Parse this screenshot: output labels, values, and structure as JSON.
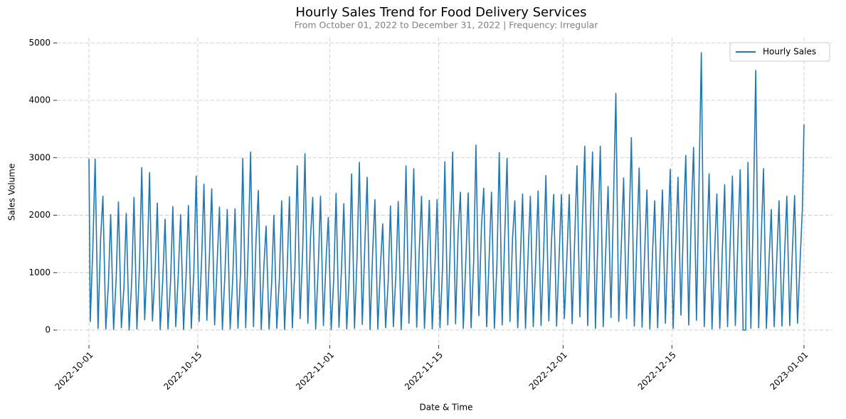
{
  "chart_data": {
    "type": "line",
    "title": "Hourly Sales Trend for Food Delivery Services",
    "subtitle": "From October 01, 2022 to December 31, 2022 | Frequency: Irregular",
    "x_label": "Date & Time",
    "y_label": "Sales Volume",
    "x": [
      "2022-10-01 00:00",
      "2022-10-01 04:00",
      "2022-10-01 12:00",
      "2022-10-01 19:00",
      "2022-10-02 04:00",
      "2022-10-02 12:00",
      "2022-10-02 19:00",
      "2022-10-03 04:00",
      "2022-10-03 12:00",
      "2022-10-03 19:00",
      "2022-10-04 04:00",
      "2022-10-04 12:00",
      "2022-10-04 19:00",
      "2022-10-05 04:00",
      "2022-10-05 12:00",
      "2022-10-05 19:00",
      "2022-10-06 04:00",
      "2022-10-06 12:00",
      "2022-10-06 19:00",
      "2022-10-07 04:00",
      "2022-10-07 12:00",
      "2022-10-07 19:00",
      "2022-10-08 04:00",
      "2022-10-08 12:00",
      "2022-10-08 19:00",
      "2022-10-09 04:00",
      "2022-10-09 12:00",
      "2022-10-09 19:00",
      "2022-10-10 04:00",
      "2022-10-10 12:00",
      "2022-10-10 19:00",
      "2022-10-11 04:00",
      "2022-10-11 12:00",
      "2022-10-11 19:00",
      "2022-10-12 04:00",
      "2022-10-12 12:00",
      "2022-10-12 19:00",
      "2022-10-13 04:00",
      "2022-10-13 12:00",
      "2022-10-13 19:00",
      "2022-10-14 04:00",
      "2022-10-14 12:00",
      "2022-10-14 19:00",
      "2022-10-15 04:00",
      "2022-10-15 12:00",
      "2022-10-15 19:00",
      "2022-10-16 04:00",
      "2022-10-16 12:00",
      "2022-10-16 19:00",
      "2022-10-17 04:00",
      "2022-10-17 12:00",
      "2022-10-17 19:00",
      "2022-10-18 04:00",
      "2022-10-18 12:00",
      "2022-10-18 19:00",
      "2022-10-19 04:00",
      "2022-10-19 12:00",
      "2022-10-19 19:00",
      "2022-10-20 04:00",
      "2022-10-20 12:00",
      "2022-10-20 19:00",
      "2022-10-21 04:00",
      "2022-10-21 12:00",
      "2022-10-21 19:00",
      "2022-10-22 04:00",
      "2022-10-22 12:00",
      "2022-10-22 19:00",
      "2022-10-23 04:00",
      "2022-10-23 12:00",
      "2022-10-23 19:00",
      "2022-10-24 04:00",
      "2022-10-24 12:00",
      "2022-10-24 19:00",
      "2022-10-25 04:00",
      "2022-10-25 12:00",
      "2022-10-25 19:00",
      "2022-10-26 04:00",
      "2022-10-26 12:00",
      "2022-10-26 19:00",
      "2022-10-27 04:00",
      "2022-10-27 12:00",
      "2022-10-27 19:00",
      "2022-10-28 04:00",
      "2022-10-28 12:00",
      "2022-10-28 19:00",
      "2022-10-29 04:00",
      "2022-10-29 12:00",
      "2022-10-29 19:00",
      "2022-10-30 04:00",
      "2022-10-30 12:00",
      "2022-10-30 19:00",
      "2022-10-31 04:00",
      "2022-10-31 12:00",
      "2022-10-31 19:00",
      "2022-11-01 04:00",
      "2022-11-01 12:00",
      "2022-11-01 19:00",
      "2022-11-02 04:00",
      "2022-11-02 12:00",
      "2022-11-02 19:00",
      "2022-11-03 04:00",
      "2022-11-03 12:00",
      "2022-11-03 19:00",
      "2022-11-04 04:00",
      "2022-11-04 12:00",
      "2022-11-04 19:00",
      "2022-11-05 04:00",
      "2022-11-05 12:00",
      "2022-11-05 19:00",
      "2022-11-06 04:00",
      "2022-11-06 12:00",
      "2022-11-06 19:00",
      "2022-11-07 04:00",
      "2022-11-07 12:00",
      "2022-11-07 19:00",
      "2022-11-08 04:00",
      "2022-11-08 12:00",
      "2022-11-08 19:00",
      "2022-11-09 04:00",
      "2022-11-09 12:00",
      "2022-11-09 19:00",
      "2022-11-10 04:00",
      "2022-11-10 12:00",
      "2022-11-10 19:00",
      "2022-11-11 04:00",
      "2022-11-11 12:00",
      "2022-11-11 19:00",
      "2022-11-12 04:00",
      "2022-11-12 12:00",
      "2022-11-12 19:00",
      "2022-11-13 04:00",
      "2022-11-13 12:00",
      "2022-11-13 19:00",
      "2022-11-14 04:00",
      "2022-11-14 12:00",
      "2022-11-14 19:00",
      "2022-11-15 04:00",
      "2022-11-15 12:00",
      "2022-11-15 19:00",
      "2022-11-16 04:00",
      "2022-11-16 12:00",
      "2022-11-16 19:00",
      "2022-11-17 04:00",
      "2022-11-17 12:00",
      "2022-11-17 19:00",
      "2022-11-18 04:00",
      "2022-11-18 12:00",
      "2022-11-18 19:00",
      "2022-11-19 04:00",
      "2022-11-19 12:00",
      "2022-11-19 19:00",
      "2022-11-20 04:00",
      "2022-11-20 12:00",
      "2022-11-20 19:00",
      "2022-11-21 04:00",
      "2022-11-21 12:00",
      "2022-11-21 19:00",
      "2022-11-22 04:00",
      "2022-11-22 12:00",
      "2022-11-22 19:00",
      "2022-11-23 04:00",
      "2022-11-23 12:00",
      "2022-11-23 19:00",
      "2022-11-24 04:00",
      "2022-11-24 12:00",
      "2022-11-24 19:00",
      "2022-11-25 04:00",
      "2022-11-25 12:00",
      "2022-11-25 19:00",
      "2022-11-26 04:00",
      "2022-11-26 12:00",
      "2022-11-26 19:00",
      "2022-11-27 04:00",
      "2022-11-27 12:00",
      "2022-11-27 19:00",
      "2022-11-28 04:00",
      "2022-11-28 12:00",
      "2022-11-28 19:00",
      "2022-11-29 04:00",
      "2022-11-29 12:00",
      "2022-11-29 19:00",
      "2022-11-30 04:00",
      "2022-11-30 12:00",
      "2022-11-30 19:00",
      "2022-12-01 04:00",
      "2022-12-01 12:00",
      "2022-12-01 19:00",
      "2022-12-02 04:00",
      "2022-12-02 12:00",
      "2022-12-02 19:00",
      "2022-12-03 04:00",
      "2022-12-03 12:00",
      "2022-12-03 19:00",
      "2022-12-04 04:00",
      "2022-12-04 12:00",
      "2022-12-04 19:00",
      "2022-12-05 04:00",
      "2022-12-05 12:00",
      "2022-12-05 19:00",
      "2022-12-06 04:00",
      "2022-12-06 12:00",
      "2022-12-06 19:00",
      "2022-12-07 04:00",
      "2022-12-07 12:00",
      "2022-12-07 19:00",
      "2022-12-08 04:00",
      "2022-12-08 12:00",
      "2022-12-08 19:00",
      "2022-12-09 04:00",
      "2022-12-09 12:00",
      "2022-12-09 19:00",
      "2022-12-10 04:00",
      "2022-12-10 12:00",
      "2022-12-10 19:00",
      "2022-12-11 04:00",
      "2022-12-11 12:00",
      "2022-12-11 19:00",
      "2022-12-12 04:00",
      "2022-12-12 12:00",
      "2022-12-12 19:00",
      "2022-12-13 04:00",
      "2022-12-13 12:00",
      "2022-12-13 19:00",
      "2022-12-14 04:00",
      "2022-12-14 12:00",
      "2022-12-14 19:00",
      "2022-12-15 04:00",
      "2022-12-15 12:00",
      "2022-12-15 19:00",
      "2022-12-16 04:00",
      "2022-12-16 12:00",
      "2022-12-16 19:00",
      "2022-12-17 04:00",
      "2022-12-17 12:00",
      "2022-12-17 19:00",
      "2022-12-18 04:00",
      "2022-12-18 12:00",
      "2022-12-18 19:00",
      "2022-12-19 04:00",
      "2022-12-19 12:00",
      "2022-12-19 19:00",
      "2022-12-20 04:00",
      "2022-12-20 12:00",
      "2022-12-20 19:00",
      "2022-12-21 04:00",
      "2022-12-21 12:00",
      "2022-12-21 19:00",
      "2022-12-22 04:00",
      "2022-12-22 12:00",
      "2022-12-22 19:00",
      "2022-12-23 04:00",
      "2022-12-23 12:00",
      "2022-12-23 19:00",
      "2022-12-24 04:00",
      "2022-12-24 12:00",
      "2022-12-24 19:00",
      "2022-12-25 04:00",
      "2022-12-25 12:00",
      "2022-12-25 19:00",
      "2022-12-26 04:00",
      "2022-12-26 12:00",
      "2022-12-26 19:00",
      "2022-12-27 04:00",
      "2022-12-27 12:00",
      "2022-12-27 19:00",
      "2022-12-28 04:00",
      "2022-12-28 12:00",
      "2022-12-28 19:00",
      "2022-12-29 04:00",
      "2022-12-29 12:00",
      "2022-12-29 19:00",
      "2022-12-30 04:00",
      "2022-12-30 12:00",
      "2022-12-30 19:00",
      "2022-12-31 04:00",
      "2022-12-31 12:00",
      "2022-12-31 19:00",
      "2023-01-01 00:00"
    ],
    "series": [
      {
        "name": "Hourly Sales",
        "color": "#1f77b4",
        "values": [
          2980,
          150,
          1450,
          2980,
          30,
          1600,
          2330,
          20,
          800,
          2010,
          10,
          900,
          2230,
          40,
          750,
          2030,
          0,
          850,
          2310,
          20,
          1100,
          2830,
          180,
          1200,
          2740,
          160,
          1000,
          2210,
          10,
          900,
          1930,
          20,
          850,
          2150,
          60,
          1000,
          2010,
          10,
          950,
          2170,
          30,
          1050,
          2680,
          150,
          1250,
          2540,
          170,
          1300,
          2460,
          90,
          1200,
          2140,
          10,
          1000,
          2100,
          20,
          900,
          2110,
          30,
          1000,
          2990,
          40,
          1500,
          3100,
          60,
          1600,
          2430,
          10,
          1100,
          1810,
          20,
          800,
          2000,
          30,
          900,
          2250,
          10,
          1050,
          2320,
          40,
          1100,
          2860,
          200,
          1400,
          3070,
          120,
          1600,
          2310,
          20,
          1100,
          2330,
          80,
          1200,
          1960,
          10,
          900,
          2380,
          50,
          1100,
          2200,
          20,
          1000,
          2720,
          30,
          1300,
          2920,
          100,
          1500,
          2660,
          10,
          1350,
          2270,
          20,
          1100,
          1850,
          40,
          850,
          2160,
          60,
          1000,
          2240,
          10,
          1050,
          2860,
          120,
          1450,
          2810,
          50,
          1400,
          2330,
          30,
          1100,
          2260,
          20,
          1050,
          2270,
          40,
          1100,
          2930,
          90,
          1500,
          3100,
          110,
          1700,
          2400,
          30,
          1250,
          2390,
          40,
          1200,
          3220,
          250,
          1800,
          2470,
          60,
          1300,
          2400,
          30,
          1200,
          3090,
          90,
          1650,
          2990,
          150,
          1600,
          2250,
          40,
          1200,
          2370,
          30,
          1300,
          2330,
          60,
          1250,
          2420,
          80,
          1350,
          2690,
          160,
          1500,
          2360,
          70,
          1300,
          2360,
          200,
          1300,
          2360,
          110,
          1600,
          2860,
          230,
          1900,
          3200,
          80,
          1800,
          3100,
          30,
          1700,
          3200,
          60,
          1400,
          2500,
          220,
          2300,
          4120,
          150,
          1500,
          2650,
          200,
          1800,
          3350,
          70,
          1600,
          2820,
          50,
          1350,
          2440,
          20,
          1300,
          2250,
          40,
          1400,
          2440,
          120,
          1600,
          2800,
          30,
          1500,
          2660,
          260,
          1900,
          3040,
          90,
          2000,
          3180,
          170,
          2600,
          4830,
          60,
          1500,
          2720,
          20,
          1350,
          2370,
          30,
          1400,
          2530,
          60,
          1500,
          2680,
          80,
          1600,
          2790,
          0,
          0,
          2920,
          30,
          2200,
          4520,
          40,
          1600,
          2810,
          30,
          1200,
          2100,
          60,
          1250,
          2250,
          70,
          1300,
          2330,
          80,
          1350,
          2340,
          120,
          1200,
          2110,
          3580
        ]
      }
    ],
    "xlim": [
      "2022-09-26 21:00",
      "2023-01-04 16:00"
    ],
    "xticks": [
      "2022-10-01",
      "2022-10-15",
      "2022-11-01",
      "2022-11-15",
      "2022-12-01",
      "2022-12-15",
      "2023-01-01"
    ],
    "ylim": [
      -260,
      5090
    ],
    "yticks": [
      0,
      1000,
      2000,
      3000,
      4000,
      5000
    ],
    "grid": true,
    "legend": "upper right"
  }
}
